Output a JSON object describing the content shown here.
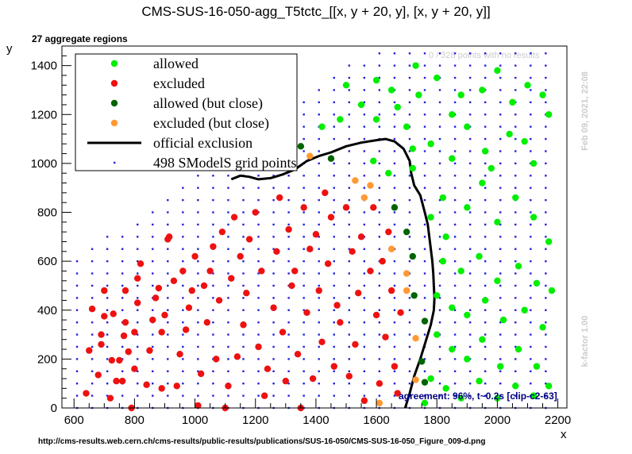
{
  "chart_data": {
    "type": "scatter",
    "title": "CMS-SUS-16-050-agg_T5tctc_[[x, y + 20, y], [x, y + 20, y]]",
    "subtitle": "27 aggregate regions",
    "xlabel": "x",
    "ylabel": "y",
    "xlim": [
      560,
      2230
    ],
    "ylim": [
      0,
      1480
    ],
    "x_ticks": [
      "600",
      "800",
      "1000",
      "1200",
      "1400",
      "1600",
      "1800",
      "2000",
      "2200"
    ],
    "y_ticks": [
      "0",
      "200",
      "400",
      "600",
      "800",
      "1000",
      "1200",
      "1400"
    ],
    "grid": false,
    "legend_position": "top-left",
    "legend": [
      {
        "label": "allowed",
        "color": "#00ee00",
        "kind": "dot"
      },
      {
        "label": "excluded",
        "color": "#ee1111",
        "kind": "dot"
      },
      {
        "label": "allowed (but close)",
        "color": "#006400",
        "kind": "dot"
      },
      {
        "label": "excluded (but close)",
        "color": "#ff9933",
        "kind": "dot"
      },
      {
        "label": "official exclusion",
        "color": "#000000",
        "kind": "line"
      },
      {
        "label": "498 SModelS grid points",
        "color": "#2222dd",
        "kind": "small"
      }
    ],
    "annotations": {
      "top_right": "0 / 328 points with no results",
      "timestamp": "Feb 09, 2021, 22:08",
      "kfactor": "k-factor 1.00",
      "agreement": "agreement: 96%, t~0.2s [clip-c2-63]",
      "url": "http://cms-results.web.cern.ch/cms-results/public-results/publications/SUS-16-050/CMS-SUS-16-050_Figure_009-d.png"
    },
    "grid_points_rule": {
      "x_start": 610,
      "x_step": 50,
      "x_end": 2160,
      "y_start": 0,
      "y_step": 50,
      "boundary_x0": 1050,
      "boundary_slope": 0.88
    },
    "series": [
      {
        "name": "official exclusion",
        "color": "#000000",
        "points": [
          [
            1120,
            935
          ],
          [
            1150,
            950
          ],
          [
            1180,
            945
          ],
          [
            1210,
            935
          ],
          [
            1250,
            940
          ],
          [
            1290,
            955
          ],
          [
            1330,
            975
          ],
          [
            1370,
            1010
          ],
          [
            1410,
            1030
          ],
          [
            1450,
            1045
          ],
          [
            1500,
            1070
          ],
          [
            1550,
            1085
          ],
          [
            1600,
            1095
          ],
          [
            1630,
            1100
          ],
          [
            1660,
            1090
          ],
          [
            1690,
            1060
          ],
          [
            1710,
            1010
          ],
          [
            1715,
            960
          ],
          [
            1725,
            910
          ],
          [
            1745,
            870
          ],
          [
            1760,
            800
          ],
          [
            1770,
            750
          ],
          [
            1775,
            700
          ],
          [
            1780,
            650
          ],
          [
            1785,
            600
          ],
          [
            1788,
            550
          ],
          [
            1790,
            500
          ],
          [
            1792,
            450
          ],
          [
            1790,
            400
          ],
          [
            1780,
            340
          ],
          [
            1765,
            280
          ],
          [
            1745,
            200
          ],
          [
            1725,
            130
          ],
          [
            1710,
            60
          ],
          [
            1700,
            20
          ],
          [
            1695,
            0
          ]
        ]
      },
      {
        "name": "excluded",
        "color": "#ee1111",
        "points": [
          [
            640,
            60
          ],
          [
            650,
            235
          ],
          [
            660,
            405
          ],
          [
            680,
            135
          ],
          [
            690,
            260
          ],
          [
            690,
            300
          ],
          [
            700,
            375
          ],
          [
            700,
            480
          ],
          [
            720,
            40
          ],
          [
            725,
            195
          ],
          [
            730,
            385
          ],
          [
            740,
            110
          ],
          [
            750,
            195
          ],
          [
            760,
            110
          ],
          [
            765,
            295
          ],
          [
            770,
            350
          ],
          [
            770,
            480
          ],
          [
            780,
            230
          ],
          [
            790,
            0
          ],
          [
            800,
            160
          ],
          [
            800,
            310
          ],
          [
            810,
            430
          ],
          [
            810,
            530
          ],
          [
            820,
            590
          ],
          [
            840,
            95
          ],
          [
            850,
            235
          ],
          [
            860,
            360
          ],
          [
            870,
            450
          ],
          [
            880,
            490
          ],
          [
            890,
            80
          ],
          [
            890,
            310
          ],
          [
            900,
            380
          ],
          [
            910,
            690
          ],
          [
            915,
            700
          ],
          [
            930,
            520
          ],
          [
            940,
            90
          ],
          [
            950,
            220
          ],
          [
            960,
            560
          ],
          [
            970,
            320
          ],
          [
            980,
            410
          ],
          [
            990,
            480
          ],
          [
            1000,
            620
          ],
          [
            1010,
            10
          ],
          [
            1020,
            140
          ],
          [
            1030,
            500
          ],
          [
            1040,
            350
          ],
          [
            1050,
            560
          ],
          [
            1060,
            660
          ],
          [
            1070,
            200
          ],
          [
            1080,
            440
          ],
          [
            1090,
            720
          ],
          [
            1100,
            0
          ],
          [
            1110,
            90
          ],
          [
            1120,
            530
          ],
          [
            1130,
            780
          ],
          [
            1140,
            210
          ],
          [
            1150,
            620
          ],
          [
            1160,
            340
          ],
          [
            1170,
            470
          ],
          [
            1180,
            690
          ],
          [
            1200,
            800
          ],
          [
            1210,
            250
          ],
          [
            1220,
            560
          ],
          [
            1230,
            50
          ],
          [
            1240,
            160
          ],
          [
            1260,
            410
          ],
          [
            1270,
            640
          ],
          [
            1280,
            860
          ],
          [
            1290,
            310
          ],
          [
            1300,
            110
          ],
          [
            1310,
            730
          ],
          [
            1320,
            500
          ],
          [
            1330,
            560
          ],
          [
            1340,
            220
          ],
          [
            1350,
            0
          ],
          [
            1360,
            820
          ],
          [
            1370,
            390
          ],
          [
            1380,
            650
          ],
          [
            1390,
            120
          ],
          [
            1400,
            710
          ],
          [
            1410,
            480
          ],
          [
            1420,
            270
          ],
          [
            1430,
            880
          ],
          [
            1440,
            590
          ],
          [
            1450,
            780
          ],
          [
            1460,
            170
          ],
          [
            1470,
            420
          ],
          [
            1480,
            350
          ],
          [
            1500,
            820
          ],
          [
            1510,
            130
          ],
          [
            1520,
            640
          ],
          [
            1530,
            260
          ],
          [
            1540,
            470
          ],
          [
            1550,
            700
          ],
          [
            1560,
            30
          ],
          [
            1580,
            560
          ],
          [
            1590,
            820
          ],
          [
            1600,
            380
          ],
          [
            1610,
            100
          ],
          [
            1620,
            600
          ],
          [
            1630,
            290
          ],
          [
            1640,
            720
          ],
          [
            1650,
            480
          ],
          [
            1660,
            170
          ],
          [
            1670,
            60
          ],
          [
            1680,
            390
          ]
        ]
      },
      {
        "name": "allowed",
        "color": "#00ee00",
        "points": [
          [
            1730,
            1400
          ],
          [
            1800,
            1350
          ],
          [
            1740,
            1280
          ],
          [
            1850,
            1200
          ],
          [
            1650,
            1300
          ],
          [
            1500,
            1320
          ],
          [
            1480,
            1180
          ],
          [
            1420,
            1150
          ],
          [
            1550,
            1240
          ],
          [
            1600,
            1180
          ],
          [
            1720,
            1060
          ],
          [
            1780,
            1080
          ],
          [
            1850,
            1020
          ],
          [
            1900,
            1150
          ],
          [
            1950,
            1300
          ],
          [
            2000,
            1380
          ],
          [
            2050,
            1250
          ],
          [
            2100,
            1320
          ],
          [
            2150,
            1280
          ],
          [
            1960,
            1050
          ],
          [
            2040,
            1120
          ],
          [
            2120,
            1000
          ],
          [
            2170,
            1200
          ],
          [
            1820,
            860
          ],
          [
            1780,
            780
          ],
          [
            1830,
            700
          ],
          [
            1900,
            820
          ],
          [
            1950,
            920
          ],
          [
            2000,
            760
          ],
          [
            2060,
            860
          ],
          [
            2120,
            780
          ],
          [
            2170,
            680
          ],
          [
            1820,
            600
          ],
          [
            1880,
            560
          ],
          [
            1940,
            620
          ],
          [
            2000,
            520
          ],
          [
            2070,
            580
          ],
          [
            2130,
            510
          ],
          [
            2180,
            480
          ],
          [
            1800,
            460
          ],
          [
            1850,
            410
          ],
          [
            1900,
            380
          ],
          [
            1960,
            440
          ],
          [
            2020,
            360
          ],
          [
            2090,
            400
          ],
          [
            2150,
            330
          ],
          [
            1800,
            300
          ],
          [
            1850,
            240
          ],
          [
            1900,
            200
          ],
          [
            1950,
            280
          ],
          [
            2010,
            170
          ],
          [
            2070,
            240
          ],
          [
            2130,
            170
          ],
          [
            1780,
            120
          ],
          [
            1830,
            80
          ],
          [
            1880,
            40
          ],
          [
            1940,
            110
          ],
          [
            2000,
            40
          ],
          [
            2060,
            90
          ],
          [
            2120,
            50
          ],
          [
            2170,
            90
          ],
          [
            1760,
            20
          ],
          [
            1590,
            1010
          ],
          [
            1640,
            960
          ],
          [
            1720,
            980
          ],
          [
            1700,
            1150
          ],
          [
            1670,
            1230
          ],
          [
            1600,
            1340
          ],
          [
            2090,
            1090
          ],
          [
            1880,
            1280
          ],
          [
            1980,
            980
          ]
        ]
      },
      {
        "name": "allowed (but close)",
        "color": "#006400",
        "points": [
          [
            1350,
            1070
          ],
          [
            1450,
            1020
          ],
          [
            1660,
            820
          ],
          [
            1700,
            720
          ],
          [
            1720,
            620
          ],
          [
            1725,
            460
          ],
          [
            1760,
            355
          ],
          [
            1750,
            190
          ],
          [
            1760,
            105
          ]
        ]
      },
      {
        "name": "excluded (but close)",
        "color": "#ff9933",
        "points": [
          [
            1380,
            1030
          ],
          [
            1530,
            930
          ],
          [
            1580,
            910
          ],
          [
            1560,
            860
          ],
          [
            1650,
            650
          ],
          [
            1700,
            550
          ],
          [
            1700,
            480
          ],
          [
            1730,
            285
          ],
          [
            1730,
            115
          ],
          [
            1610,
            20
          ]
        ]
      }
    ]
  }
}
